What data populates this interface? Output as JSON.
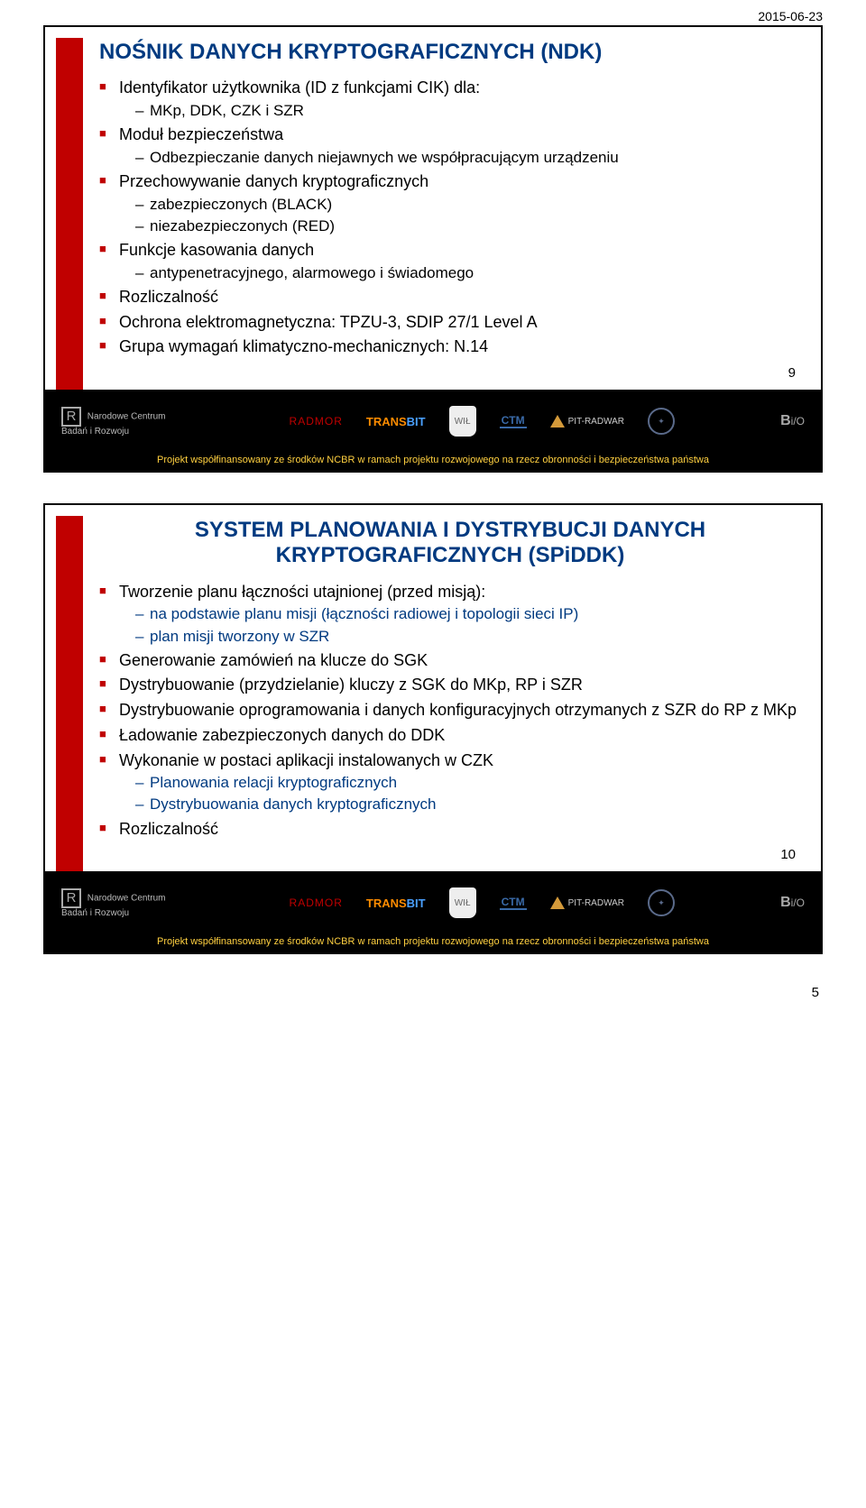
{
  "meta": {
    "date": "2015-06-23",
    "page_number": "5"
  },
  "colors": {
    "accent_red": "#c00000",
    "heading_blue": "#003a80",
    "footer_bg": "#000000",
    "footer_text": "#ffd040"
  },
  "footer_text": "Projekt współfinansowany ze środków NCBR w ramach projektu rozwojowego na rzecz obronności i bezpieczeństwa państwa",
  "logos": {
    "ncbr_line1": "Narodowe Centrum",
    "ncbr_line2": "Badań i Rozwoju",
    "radmor": "RADMOR",
    "transbit_a": "TRANS",
    "transbit_b": "BIT",
    "crest": "WIŁ",
    "ctm": "CTM",
    "pitradwar": "PIT-RADWAR",
    "bio_b": "B",
    "bio_rest": "i/O"
  },
  "slide1": {
    "number": "9",
    "title": "NOŚNIK DANYCH KRYPTOGRAFICZNYCH (NDK)",
    "items": [
      {
        "text": "Identyfikator użytkownika (ID z funkcjami CIK) dla:",
        "subs": [
          "MKp, DDK, CZK i SZR"
        ]
      },
      {
        "text": "Moduł bezpieczeństwa",
        "subs": [
          "Odbezpieczanie danych niejawnych we współpracującym urządzeniu"
        ]
      },
      {
        "text": "Przechowywanie danych kryptograficznych",
        "subs": [
          "zabezpieczonych (BLACK)",
          "niezabezpieczonych (RED)"
        ]
      },
      {
        "text": "Funkcje kasowania danych",
        "subs": [
          "antypenetracyjnego, alarmowego i świadomego"
        ]
      },
      {
        "text": "Rozliczalność"
      },
      {
        "text": "Ochrona elektromagnetyczna: TPZU-3, SDIP 27/1 Level A"
      },
      {
        "text": "Grupa wymagań klimatyczno-mechanicznych: N.14"
      }
    ]
  },
  "slide2": {
    "number": "10",
    "title": "SYSTEM PLANOWANIA I DYSTRYBUCJI DANYCH KRYPTOGRAFICZNYCH (SPiDDK)",
    "items": [
      {
        "text": "Tworzenie planu łączności utajnionej (przed misją):",
        "subs_blue": true,
        "subs": [
          "na podstawie planu misji (łączności radiowej i topologii sieci IP)",
          "plan misji tworzony w SZR"
        ]
      },
      {
        "text": "Generowanie zamówień na klucze do SGK"
      },
      {
        "text": "Dystrybuowanie (przydzielanie) kluczy z SGK do MKp, RP i SZR"
      },
      {
        "text": "Dystrybuowanie oprogramowania i danych konfiguracyjnych otrzymanych z SZR do RP z MKp"
      },
      {
        "text": "Ładowanie zabezpieczonych danych do DDK"
      },
      {
        "text": "Wykonanie w postaci aplikacji instalowanych w CZK",
        "subs_blue": true,
        "subs": [
          "Planowania relacji kryptograficznych",
          "Dystrybuowania danych kryptograficznych"
        ]
      },
      {
        "text": "Rozliczalność"
      }
    ]
  }
}
